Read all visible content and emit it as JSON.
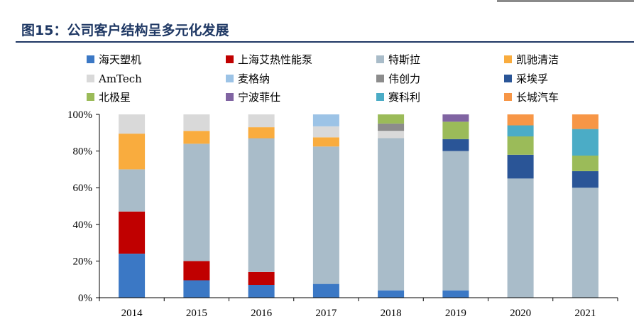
{
  "title": "图15：公司客户结构呈多元化发展",
  "chart_data": {
    "type": "bar",
    "stacked": true,
    "categories": [
      "2014",
      "2015",
      "2016",
      "2017",
      "2018",
      "2019",
      "2020",
      "2021"
    ],
    "ylim": [
      0,
      100
    ],
    "yticks": [
      "0%",
      "20%",
      "40%",
      "60%",
      "80%",
      "100%"
    ],
    "xlabel": "",
    "ylabel": "",
    "grid": false,
    "legend_position": "top",
    "series": [
      {
        "name": "海天塑机",
        "color": "#3b78c5",
        "values": [
          24,
          9.5,
          7,
          7.5,
          4,
          4,
          0,
          0
        ]
      },
      {
        "name": "上海艾热性能泵",
        "color": "#c00000",
        "values": [
          23,
          10.5,
          7,
          0,
          0,
          0,
          0,
          0
        ]
      },
      {
        "name": "特斯拉",
        "color": "#a9bcc9",
        "values": [
          23,
          64,
          73,
          75,
          83,
          76,
          65,
          60
        ]
      },
      {
        "name": "凯驰清洁",
        "color": "#f9ac3e",
        "values": [
          19.5,
          7,
          6,
          5,
          0,
          0,
          0,
          0
        ]
      },
      {
        "name": "AmTech",
        "color": "#d9d9d9",
        "values": [
          10.5,
          9,
          7,
          6,
          4,
          0,
          0,
          0
        ]
      },
      {
        "name": "麦格纳",
        "color": "#9cc3e6",
        "values": [
          0,
          0,
          0,
          6.5,
          0,
          0,
          0,
          0
        ]
      },
      {
        "name": "伟创力",
        "color": "#8c8c8c",
        "values": [
          0,
          0,
          0,
          0,
          4,
          0,
          0,
          0
        ]
      },
      {
        "name": "采埃孚",
        "color": "#2a5597",
        "values": [
          0,
          0,
          0,
          0,
          0,
          6.5,
          13,
          9
        ]
      },
      {
        "name": "北极星",
        "color": "#9bbb59",
        "values": [
          0,
          0,
          0,
          0,
          5,
          9.5,
          10,
          8.5
        ]
      },
      {
        "name": "宁波菲仕",
        "color": "#8064a2",
        "values": [
          0,
          0,
          0,
          0,
          0,
          4,
          0,
          0
        ]
      },
      {
        "name": "赛科利",
        "color": "#4bacc6",
        "values": [
          0,
          0,
          0,
          0,
          0,
          0,
          6,
          14.5
        ]
      },
      {
        "name": "长城汽车",
        "color": "#f79646",
        "values": [
          0,
          0,
          0,
          0,
          0,
          0,
          6,
          8
        ]
      }
    ]
  }
}
